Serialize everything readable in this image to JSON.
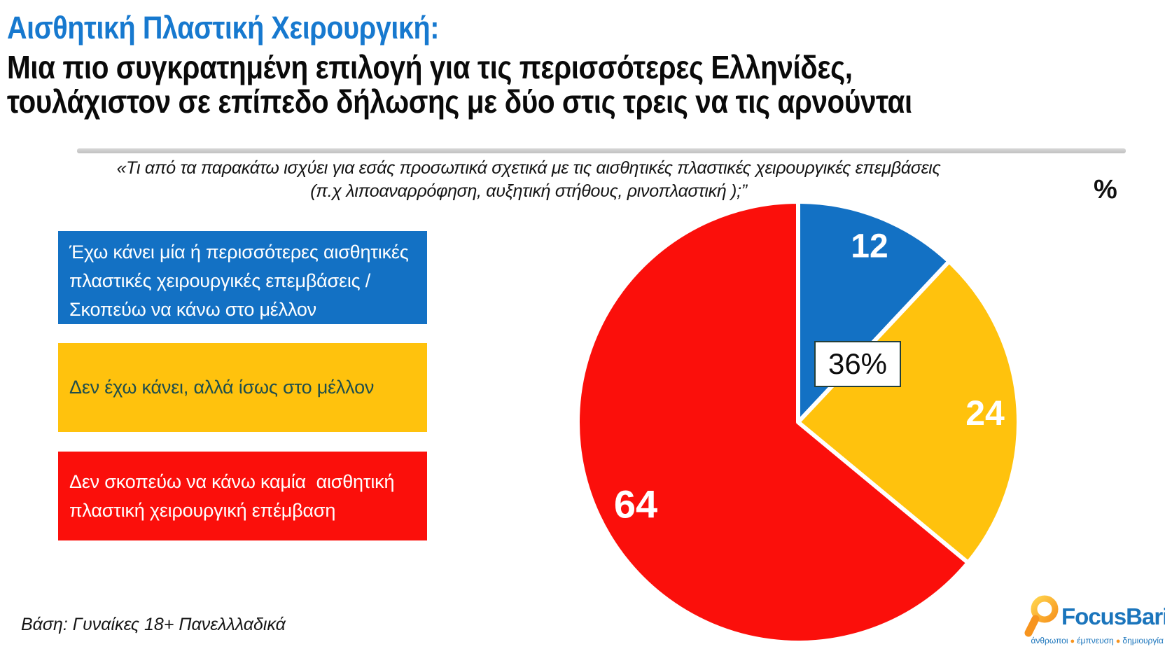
{
  "title": {
    "line1": "Αισθητική Πλαστική Χειρουργική:",
    "line2": "Μια πιο συγκρατημένη επιλογή για τις περισσότερες Ελληνίδες,",
    "line3": "τουλάχιστον σε επίπεδο δήλωσης με δύο στις τρεις να τις αρνούνται",
    "accent_color": "#1779cf"
  },
  "question": {
    "line1": "«Τι από τα παρακάτω ισχύει για εσάς προσωπικά σχετικά με τις αισθητικές πλαστικές χειρουργικές επεμβάσεις",
    "line2": "(π.χ λιποαναρρόφηση, αυξητική στήθους, ρινοπλαστική );”"
  },
  "unit_label": "%",
  "legend": [
    {
      "label": "Έχω κάνει μία ή περισσότερες αισθητικές πλαστικές χειρουργικές επεμβάσεις /Σκοπεύω να κάνω στο μέλλον",
      "color": "#1371c4",
      "text_color": "#ffffff"
    },
    {
      "label": "Δεν έχω κάνει, αλλά ίσως στο μέλλον",
      "color": "#ffc20d",
      "text_color": "#1f4e4c"
    },
    {
      "label": "Δεν σκοπεύω να κάνω καμία  αισθητική πλαστική χειρουργική επέμβαση",
      "color": "#fb0f0b",
      "text_color": "#ffffff"
    }
  ],
  "chart_data": {
    "type": "pie",
    "title": "«Τι από τα παρακάτω ισχύει για εσάς προσωπικά σχετικά με τις αισθητικές πλαστικές χειρουργικές επεμβάσεις (π.χ λιποαναρρόφηση, αυξητική στήθους, ρινοπλαστική );”",
    "unit": "%",
    "start_angle_deg": 0,
    "direction": "clockwise",
    "slices": [
      {
        "label": "Έχω κάνει μία ή περισσότερες αισθητικές πλαστικές χειρουργικές επεμβάσεις /Σκοπεύω να κάνω στο μέλλον",
        "value": 12,
        "color": "#1371c4"
      },
      {
        "label": "Δεν έχω κάνει, αλλά ίσως στο μέλλον",
        "value": 24,
        "color": "#ffc20d"
      },
      {
        "label": "Δεν σκοπεύω να κάνω καμία αισθητική πλαστική χειρουργική επέμβαση",
        "value": 64,
        "color": "#fb0f0b"
      }
    ],
    "center_callout": "36%",
    "callout_meaning": "sum of first two slices (12 + 24)",
    "slice_separator_color": "#ffffff",
    "legend_position": "left"
  },
  "footer": {
    "source": "Βάση: Γυναίκες 18+ Πανελλλαδικά"
  },
  "logo": {
    "name": "FocusBari",
    "tagline_words": [
      "άνθρωποι",
      "έμπνευση",
      "δημιουργία"
    ],
    "brand_blue": "#1b75bc",
    "brand_orange": "#f7941e",
    "brand_yellow": "#ffc20d"
  }
}
